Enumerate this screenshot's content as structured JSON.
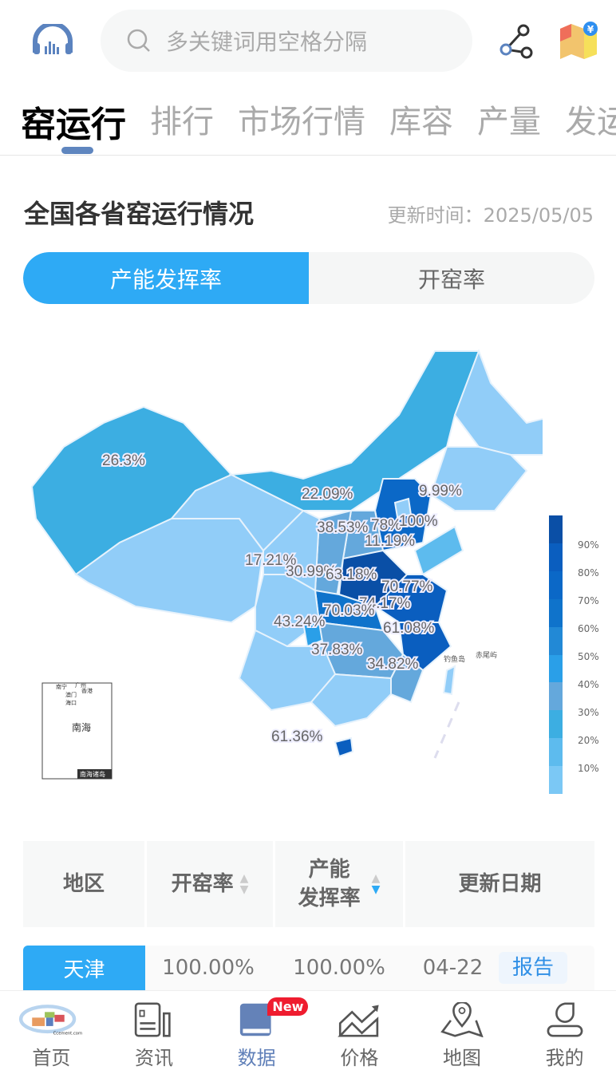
{
  "header": {
    "search_placeholder": "多关键词用空格分隔",
    "icons": [
      "headphones-icon",
      "search-icon",
      "share-icon",
      "map-price-icon"
    ]
  },
  "tabs": [
    {
      "label": "窑运行",
      "active": true
    },
    {
      "label": "排行"
    },
    {
      "label": "市场行情"
    },
    {
      "label": "库容"
    },
    {
      "label": "产量"
    },
    {
      "label": "发运"
    }
  ],
  "section": {
    "title": "全国各省窑运行情况",
    "update_time": "更新时间：2025/05/05"
  },
  "segment": {
    "options": [
      "产能发挥率",
      "开窑率"
    ],
    "selected": "产能发挥率",
    "accent": "#2eaaf5"
  },
  "map": {
    "labels": [
      "26.3%",
      "22.09%",
      "9.99%",
      "38.53%",
      "78%",
      "100%",
      "11.19%",
      "17.21%",
      "30.99%",
      "63.18%",
      "70.77%",
      "74.17%",
      "70.03%",
      "43.24%",
      "61.08%",
      "37.83%",
      "34.82%",
      "61.36%"
    ],
    "legend": [
      "90%",
      "80%",
      "70%",
      "60%",
      "50%",
      "40%",
      "30%",
      "20%",
      "10%"
    ],
    "legend_colors": [
      "#0a4fa6",
      "#0a5ebf",
      "#0b68c7",
      "#0f73cb",
      "#2289d6",
      "#2a9fe8",
      "#64a8dc",
      "#3caee2",
      "#5dbbee",
      "#7bc8f5"
    ],
    "islands": {
      "inset_title": "南海诸岛",
      "sea": "南海",
      "cities": [
        "南宁",
        "广州",
        "香港",
        "澳门",
        "海口"
      ],
      "diaoyu": "钓鱼岛",
      "chiwei": "赤尾屿"
    }
  },
  "table": {
    "headers": [
      "地区",
      "开窑率",
      "产能\n发挥率",
      "更新日期"
    ],
    "rows": [
      {
        "region": "天津",
        "kiln_rate": "100.00%",
        "capacity_rate": "100.00%",
        "date": "04-22",
        "action": "报告"
      }
    ]
  },
  "bottom_nav": [
    {
      "label": "首页"
    },
    {
      "label": "资讯"
    },
    {
      "label": "数据",
      "active": true,
      "badge": "New"
    },
    {
      "label": "价格"
    },
    {
      "label": "地图"
    },
    {
      "label": "我的"
    }
  ]
}
